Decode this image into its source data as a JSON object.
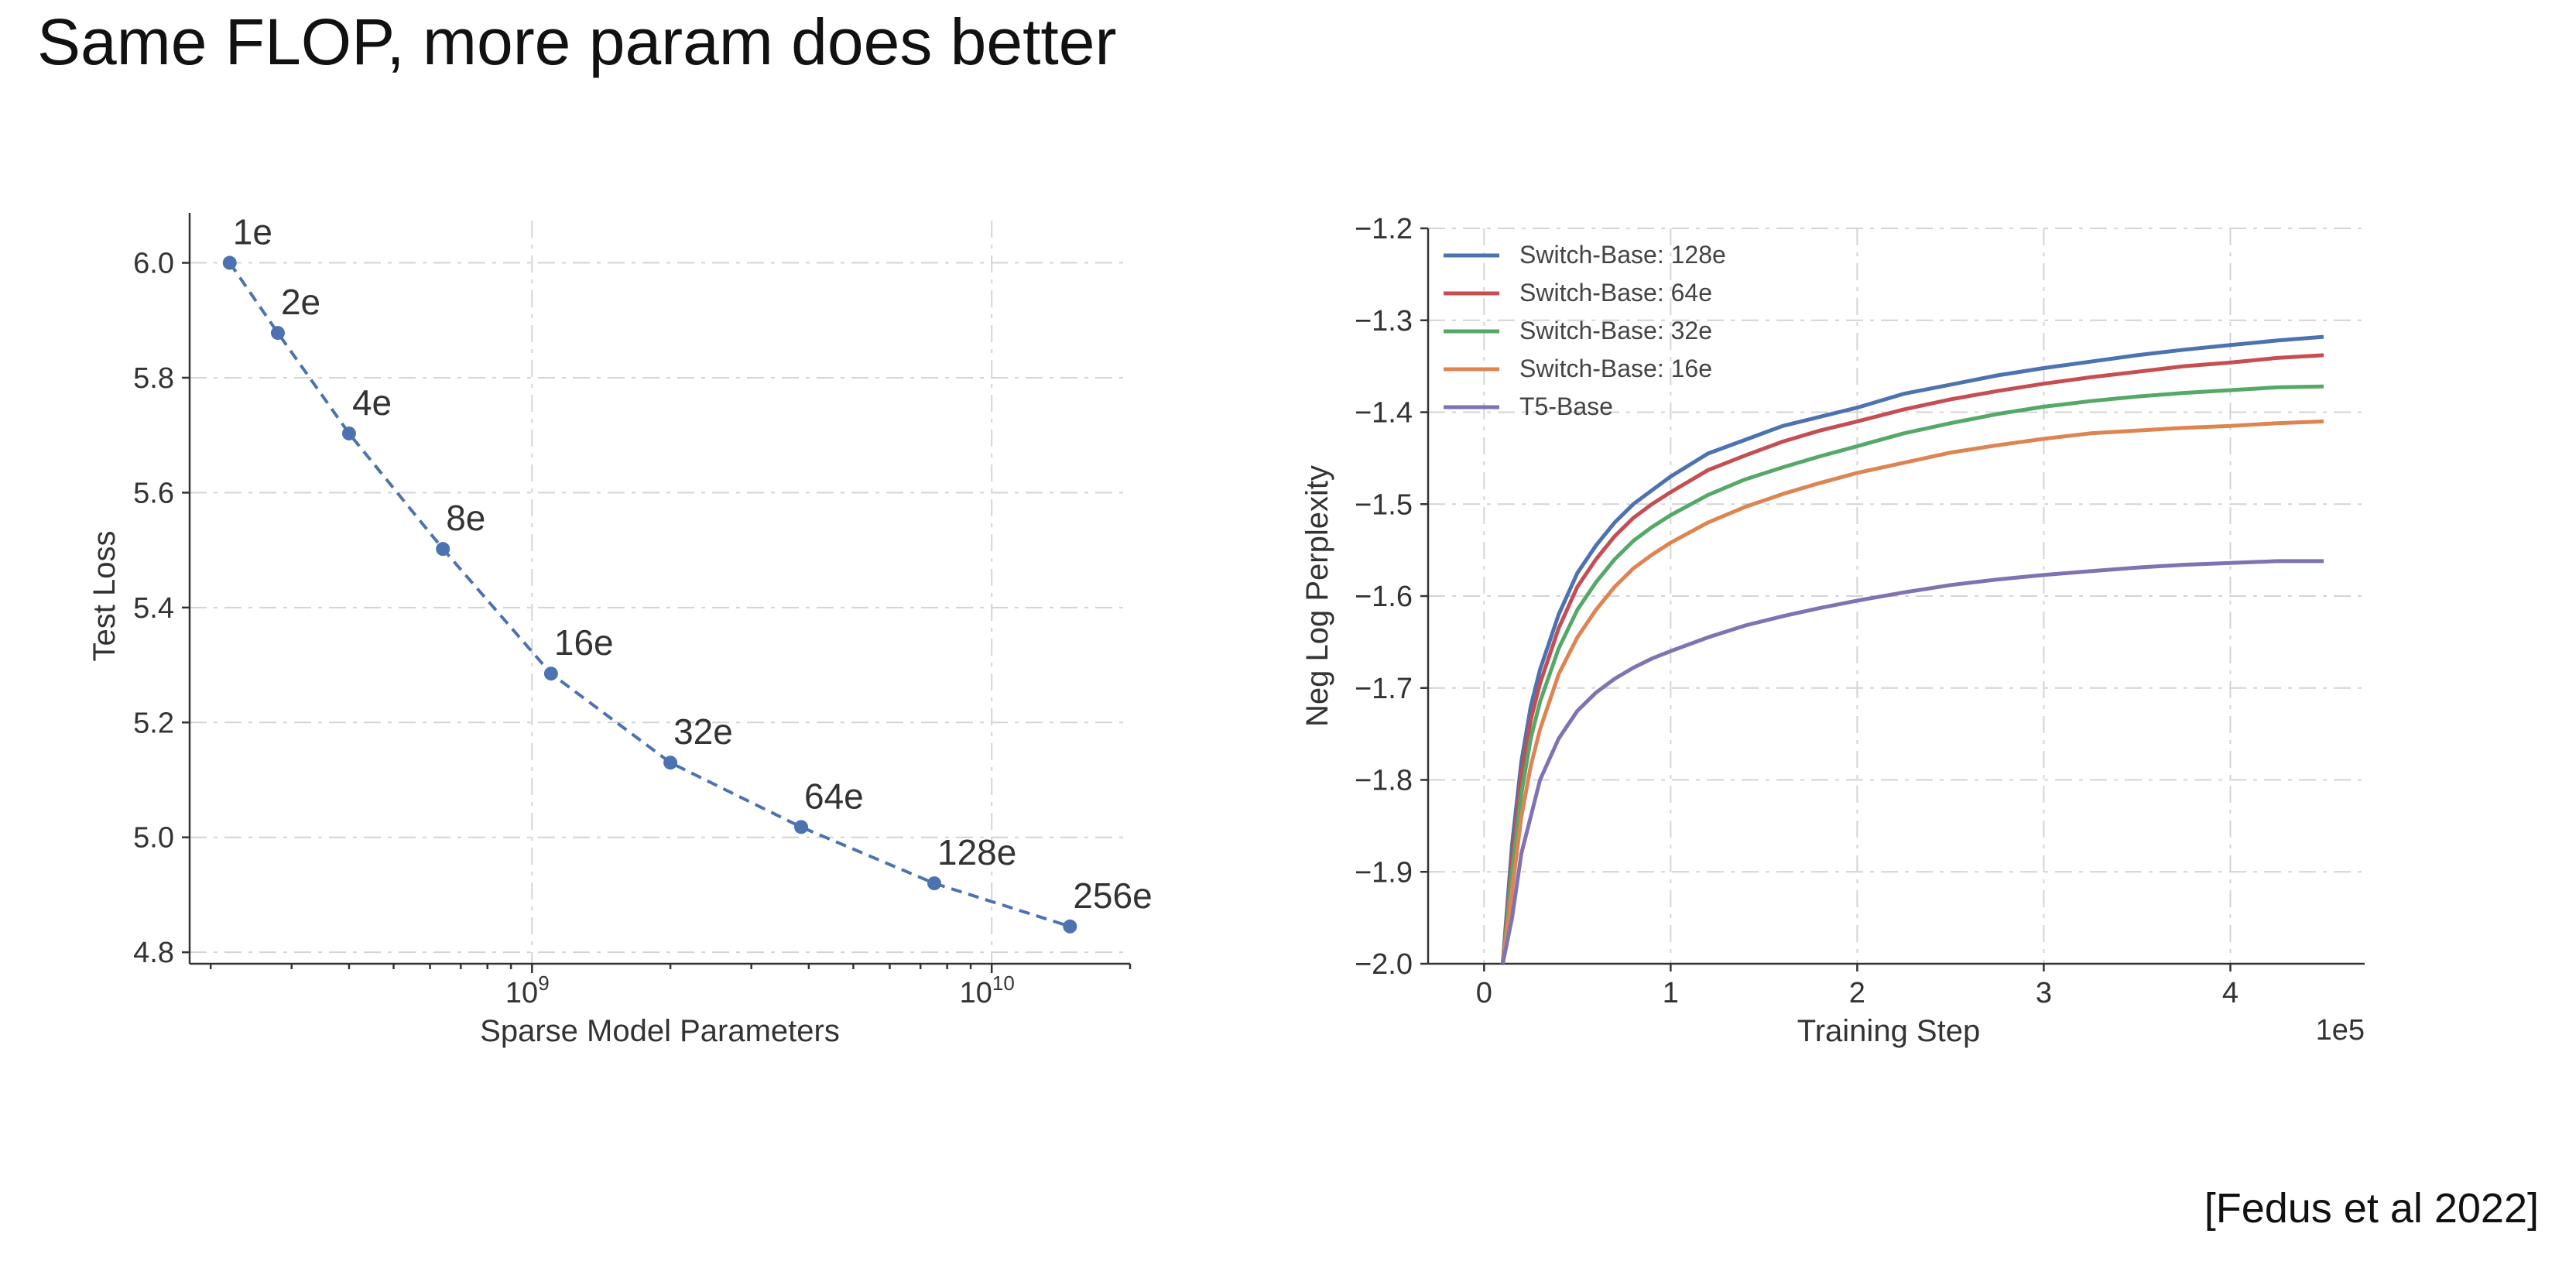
{
  "slide": {
    "title": "Same FLOP, more param does better",
    "citation": "[Fedus et al 2022]"
  },
  "chart_data": [
    {
      "type": "line",
      "style": "dashed line with markers",
      "xscale": "log",
      "xlabel": "Sparse Model Parameters",
      "ylabel": "Test Loss",
      "xlim": [
        180000000,
        20000000000
      ],
      "ylim": [
        4.78,
        6.06
      ],
      "xticks": [
        {
          "value": 1000000000,
          "base": "10",
          "exp": "9"
        },
        {
          "value": 10000000000,
          "base": "10",
          "exp": "10"
        }
      ],
      "yticks": [
        4.8,
        5.0,
        5.2,
        5.4,
        5.6,
        5.8,
        6.0
      ],
      "color": "#4c72b0",
      "points": [
        {
          "label": "1e",
          "x": 220000000,
          "y": 6.0
        },
        {
          "label": "2e",
          "x": 280000000,
          "y": 5.878
        },
        {
          "label": "4e",
          "x": 400000000,
          "y": 5.703
        },
        {
          "label": "8e",
          "x": 640000000,
          "y": 5.502
        },
        {
          "label": "16e",
          "x": 1100000000,
          "y": 5.285
        },
        {
          "label": "32e",
          "x": 2000000000,
          "y": 5.13
        },
        {
          "label": "64e",
          "x": 3850000000,
          "y": 5.018
        },
        {
          "label": "128e",
          "x": 7500000000,
          "y": 4.92
        },
        {
          "label": "256e",
          "x": 14800000000,
          "y": 4.845
        }
      ],
      "grid": true
    },
    {
      "type": "line",
      "xlabel": "Training Step",
      "ylabel": "Neg Log Perplexity",
      "x_offset_label": "1e5",
      "xlim": [
        -0.3,
        4.72
      ],
      "ylim": [
        -2.0,
        -1.2
      ],
      "xticks": [
        0,
        1,
        2,
        3,
        4
      ],
      "yticks": [
        -2.0,
        -1.9,
        -1.8,
        -1.7,
        -1.6,
        -1.5,
        -1.4,
        -1.3,
        -1.2
      ],
      "legend_position": "top-left",
      "grid": true,
      "x": [
        0.1,
        0.15,
        0.2,
        0.25,
        0.3,
        0.4,
        0.5,
        0.6,
        0.7,
        0.8,
        0.9,
        1.0,
        1.2,
        1.4,
        1.6,
        1.8,
        2.0,
        2.25,
        2.5,
        2.75,
        3.0,
        3.25,
        3.5,
        3.75,
        4.0,
        4.25,
        4.5
      ],
      "series": [
        {
          "name": "Switch-Base: 128e",
          "color": "#4c72b0",
          "values": [
            -2.0,
            -1.87,
            -1.78,
            -1.72,
            -1.68,
            -1.62,
            -1.575,
            -1.545,
            -1.52,
            -1.5,
            -1.485,
            -1.47,
            -1.445,
            -1.43,
            -1.415,
            -1.405,
            -1.395,
            -1.38,
            -1.37,
            -1.36,
            -1.352,
            -1.345,
            -1.338,
            -1.332,
            -1.327,
            -1.322,
            -1.318
          ]
        },
        {
          "name": "Switch-Base: 64e",
          "color": "#c44e52",
          "values": [
            -2.0,
            -1.885,
            -1.795,
            -1.735,
            -1.695,
            -1.635,
            -1.59,
            -1.56,
            -1.535,
            -1.515,
            -1.5,
            -1.487,
            -1.463,
            -1.447,
            -1.432,
            -1.42,
            -1.41,
            -1.397,
            -1.386,
            -1.377,
            -1.369,
            -1.362,
            -1.356,
            -1.35,
            -1.346,
            -1.341,
            -1.338
          ]
        },
        {
          "name": "Switch-Base: 32e",
          "color": "#55a868",
          "values": [
            -2.0,
            -1.9,
            -1.815,
            -1.755,
            -1.715,
            -1.657,
            -1.615,
            -1.585,
            -1.56,
            -1.54,
            -1.525,
            -1.512,
            -1.49,
            -1.473,
            -1.46,
            -1.448,
            -1.437,
            -1.423,
            -1.412,
            -1.402,
            -1.394,
            -1.388,
            -1.383,
            -1.379,
            -1.376,
            -1.373,
            -1.372
          ]
        },
        {
          "name": "Switch-Base: 16e",
          "color": "#dd8452",
          "values": [
            -2.0,
            -1.92,
            -1.84,
            -1.785,
            -1.745,
            -1.685,
            -1.645,
            -1.615,
            -1.59,
            -1.57,
            -1.555,
            -1.542,
            -1.52,
            -1.503,
            -1.489,
            -1.477,
            -1.466,
            -1.455,
            -1.444,
            -1.436,
            -1.429,
            -1.423,
            -1.42,
            -1.417,
            -1.415,
            -1.412,
            -1.41
          ]
        },
        {
          "name": "T5-Base",
          "color": "#8172b3",
          "values": [
            -2.0,
            -1.95,
            -1.88,
            -1.84,
            -1.8,
            -1.755,
            -1.725,
            -1.705,
            -1.69,
            -1.678,
            -1.668,
            -1.66,
            -1.645,
            -1.632,
            -1.622,
            -1.613,
            -1.605,
            -1.596,
            -1.588,
            -1.582,
            -1.577,
            -1.573,
            -1.569,
            -1.566,
            -1.564,
            -1.562,
            -1.562
          ]
        }
      ]
    }
  ]
}
